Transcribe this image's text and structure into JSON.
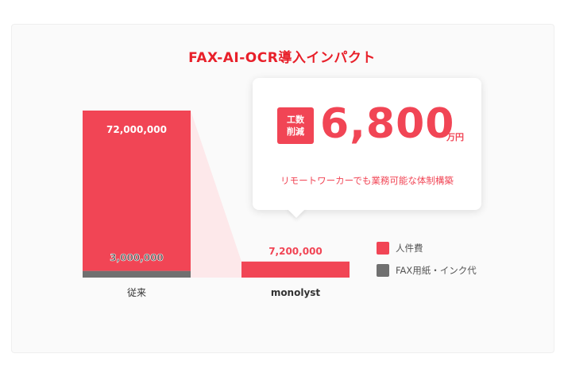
{
  "colors": {
    "labor": "#f14555",
    "fax": "#707070",
    "title": "#e8202a",
    "shade": "#fde4e6"
  },
  "title": "FAX-AI-OCR導入インパクト",
  "callout": {
    "badge_line1": "工数",
    "badge_line2": "削減",
    "value": "6,800",
    "unit": "万円",
    "subtitle": "リモートワーカーでも業務可能な体制構築"
  },
  "legend": [
    {
      "label": "人件費",
      "color": "#f14555"
    },
    {
      "label": "FAX用紙・インク代",
      "color": "#707070"
    }
  ],
  "chart_data": {
    "type": "bar",
    "categories": [
      "従来",
      "monolyst"
    ],
    "series": [
      {
        "name": "人件費",
        "values": [
          72000000,
          7200000
        ]
      },
      {
        "name": "FAX用紙・インク代",
        "values": [
          3000000,
          0
        ]
      }
    ],
    "data_labels": [
      "72,000,000",
      "3,000,000",
      "7,200,000"
    ],
    "title": "FAX-AI-OCR導入インパクト",
    "legend_position": "right",
    "grid": false
  }
}
